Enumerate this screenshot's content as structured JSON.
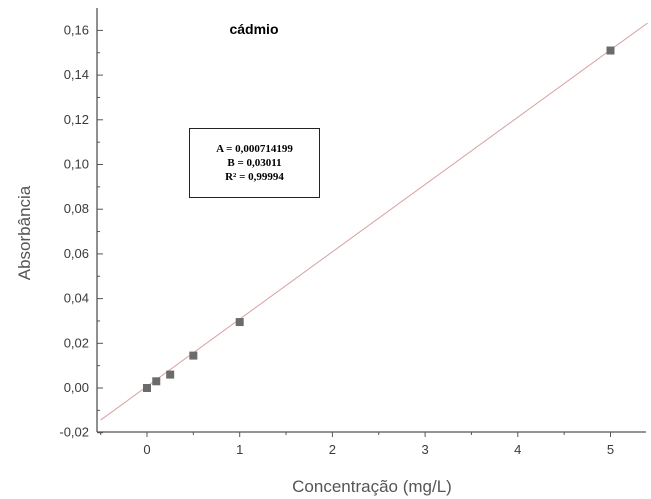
{
  "chart_data": {
    "type": "scatter",
    "title": "cádmio",
    "xlabel": "Concentração (mg/L)",
    "ylabel": "Absorbância",
    "xlim": [
      -0.5,
      5.4
    ],
    "ylim": [
      -0.02,
      0.17
    ],
    "x_ticks": [
      0,
      1,
      2,
      3,
      4,
      5
    ],
    "x_tick_labels": [
      "0",
      "1",
      "2",
      "3",
      "4",
      "5"
    ],
    "y_ticks": [
      -0.02,
      0.0,
      0.02,
      0.04,
      0.06,
      0.08,
      0.1,
      0.12,
      0.14,
      0.16
    ],
    "y_tick_labels": [
      "-0,02",
      "0,00",
      "0,02",
      "0,04",
      "0,06",
      "0,08",
      "0,10",
      "0,12",
      "0,14",
      "0,16"
    ],
    "grid": false,
    "series": [
      {
        "x": [
          0,
          0.1,
          0.25,
          0.5,
          1,
          5
        ],
        "values": [
          0.0,
          0.003,
          0.006,
          0.0145,
          0.0295,
          0.151
        ],
        "marker": "square",
        "color": "#6b6b6b"
      }
    ],
    "fit_line": {
      "intercept": 0.000714199,
      "slope": 0.03011,
      "color": "#d9a0a0"
    },
    "stats_box": {
      "line_a": "A = 0,000714199",
      "line_b": "B = 0,03011",
      "line_r2": "R² = 0,99994"
    }
  }
}
